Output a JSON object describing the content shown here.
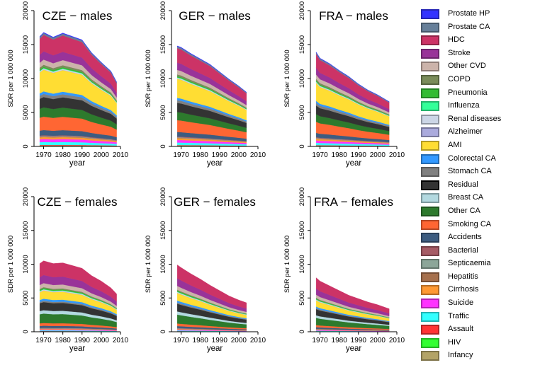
{
  "chart_data": {
    "type": "area",
    "panels": [
      {
        "title": "CZE − males",
        "xlabel": "year",
        "ylabel": "SDR per 1 000 000",
        "xlim": [
          1965,
          2010
        ],
        "ylim": [
          0,
          20000
        ],
        "x": [
          1968,
          1970,
          1975,
          1980,
          1985,
          1990,
          1995,
          2000,
          2005,
          2008
        ],
        "totals": [
          16200,
          16800,
          16100,
          16700,
          16200,
          15700,
          13800,
          12400,
          11100,
          9500
        ]
      },
      {
        "title": "GER − males",
        "xlabel": "year",
        "ylabel": "SDR per 1 000 000",
        "xlim": [
          1965,
          2010
        ],
        "ylim": [
          0,
          20000
        ],
        "x": [
          1968,
          1970,
          1975,
          1980,
          1985,
          1990,
          1995,
          2000,
          2004
        ],
        "totals": [
          14800,
          14600,
          13700,
          12900,
          12100,
          11000,
          9900,
          8900,
          8000
        ]
      },
      {
        "title": "FRA − males",
        "xlabel": "year",
        "ylabel": "SDR per 1 000 000",
        "xlim": [
          1965,
          2010
        ],
        "ylim": [
          0,
          20000
        ],
        "x": [
          1968,
          1970,
          1975,
          1980,
          1985,
          1990,
          1995,
          2000,
          2006
        ],
        "totals": [
          13900,
          13000,
          12200,
          11200,
          10300,
          9200,
          8300,
          7600,
          6600
        ]
      },
      {
        "title": "CZE − females",
        "xlabel": "year",
        "ylabel": "SDR per 1 000 000",
        "xlim": [
          1965,
          2010
        ],
        "ylim": [
          0,
          20000
        ],
        "x": [
          1968,
          1970,
          1975,
          1980,
          1985,
          1990,
          1995,
          2000,
          2005,
          2008
        ],
        "totals": [
          10100,
          10500,
          10100,
          10200,
          9800,
          9400,
          8300,
          7500,
          6500,
          5600
        ]
      },
      {
        "title": "GER − females",
        "xlabel": "year",
        "ylabel": "SDR per 1 000 000",
        "xlim": [
          1965,
          2010
        ],
        "ylim": [
          0,
          20000
        ],
        "x": [
          1968,
          1970,
          1975,
          1980,
          1985,
          1990,
          1995,
          2000,
          2004
        ],
        "totals": [
          9900,
          9500,
          8600,
          7800,
          6900,
          6100,
          5300,
          4700,
          4300
        ]
      },
      {
        "title": "FRA − females",
        "xlabel": "year",
        "ylabel": "SDR per 1 000 000",
        "xlim": [
          1965,
          2010
        ],
        "ylim": [
          0,
          20000
        ],
        "x": [
          1968,
          1970,
          1975,
          1980,
          1985,
          1990,
          1995,
          2000,
          2006
        ],
        "totals": [
          8000,
          7500,
          6800,
          6100,
          5400,
          4900,
          4400,
          4000,
          3400
        ]
      }
    ],
    "x_ticks": [
      1970,
      1980,
      1990,
      2000,
      2010
    ],
    "y_ticks": [
      0,
      5000,
      10000,
      15000,
      20000
    ],
    "stack_order_bottom_to_top": [
      "Infancy",
      "HIV",
      "Assault",
      "Traffic",
      "Suicide",
      "Cirrhosis",
      "Hepatitis",
      "Septicaemia",
      "Bacterial",
      "Accidents",
      "Smoking CA",
      "Other CA",
      "Breast CA",
      "Residual",
      "Stomach CA",
      "Colorectal CA",
      "AMI",
      "Alzheimer",
      "Renal diseases",
      "Influenza",
      "Pneumonia",
      "COPD",
      "Other CVD",
      "Stroke",
      "HDC",
      "Prostate CA",
      "Prostate HP"
    ],
    "shares_male": [
      0.008,
      0.001,
      0.006,
      0.028,
      0.028,
      0.02,
      0.004,
      0.006,
      0.008,
      0.05,
      0.13,
      0.09,
      0.0,
      0.1,
      0.03,
      0.025,
      0.21,
      0.002,
      0.01,
      0.004,
      0.012,
      0.02,
      0.05,
      0.08,
      0.16,
      0.018,
      0.006
    ],
    "shares_female": [
      0.006,
      0.0,
      0.004,
      0.012,
      0.012,
      0.01,
      0.004,
      0.006,
      0.006,
      0.03,
      0.04,
      0.14,
      0.05,
      0.12,
      0.02,
      0.03,
      0.12,
      0.004,
      0.012,
      0.005,
      0.015,
      0.015,
      0.06,
      0.12,
      0.21,
      0.0,
      0.0
    ],
    "legend": [
      {
        "label": "Prostate HP",
        "color": "#3333ff"
      },
      {
        "label": "Prostate CA",
        "color": "#667f99"
      },
      {
        "label": "HDC",
        "color": "#cc3366"
      },
      {
        "label": "Stroke",
        "color": "#993399"
      },
      {
        "label": "Other CVD",
        "color": "#ccb3aa"
      },
      {
        "label": "COPD",
        "color": "#7a8c5a"
      },
      {
        "label": "Pneumonia",
        "color": "#33bb33"
      },
      {
        "label": "Influenza",
        "color": "#33ff99"
      },
      {
        "label": "Renal diseases",
        "color": "#ccd6e6"
      },
      {
        "label": "Alzheimer",
        "color": "#aaaadd"
      },
      {
        "label": "AMI",
        "color": "#ffdd33"
      },
      {
        "label": "Colorectal CA",
        "color": "#3399ff"
      },
      {
        "label": "Stomach CA",
        "color": "#808080"
      },
      {
        "label": "Residual",
        "color": "#333333"
      },
      {
        "label": "Breast CA",
        "color": "#b3d9e0"
      },
      {
        "label": "Other CA",
        "color": "#2d7a2d"
      },
      {
        "label": "Smoking CA",
        "color": "#ff6633"
      },
      {
        "label": "Accidents",
        "color": "#3d5c80"
      },
      {
        "label": "Bacterial",
        "color": "#a65c66"
      },
      {
        "label": "Septicaemia",
        "color": "#8ca699"
      },
      {
        "label": "Hepatitis",
        "color": "#a6704d"
      },
      {
        "label": "Cirrhosis",
        "color": "#ff9933"
      },
      {
        "label": "Suicide",
        "color": "#ff33ff"
      },
      {
        "label": "Traffic",
        "color": "#33ffff"
      },
      {
        "label": "Assault",
        "color": "#ff3333"
      },
      {
        "label": "HIV",
        "color": "#33ff33"
      },
      {
        "label": "Infancy",
        "color": "#b3a366"
      }
    ]
  }
}
